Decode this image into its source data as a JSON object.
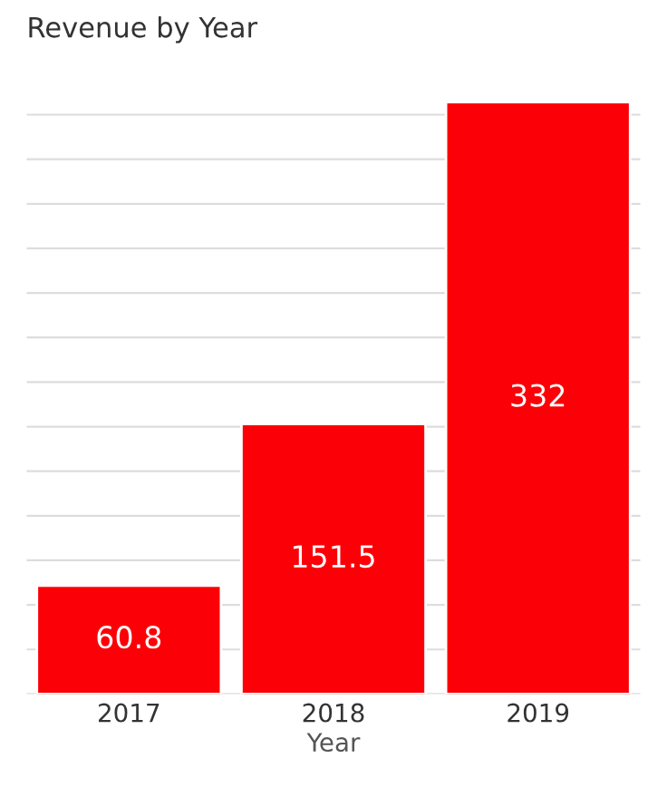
{
  "chart_data": {
    "type": "bar",
    "title": "Revenue by Year",
    "xlabel": "Year",
    "categories": [
      "2017",
      "2018",
      "2019"
    ],
    "values": [
      60.8,
      151.5,
      332
    ],
    "color": "#fc0007",
    "data_labels": true,
    "yticks": [
      {
        "value": 0,
        "label": null
      },
      {
        "value": 25,
        "label": null
      },
      {
        "value": 50,
        "label": null
      },
      {
        "value": 75,
        "label": null
      },
      {
        "value": 100,
        "label": null
      },
      {
        "value": 125,
        "label": null
      },
      {
        "value": 150,
        "label": null
      },
      {
        "value": 175,
        "label": null
      },
      {
        "value": 200,
        "label": null
      },
      {
        "value": 225,
        "label": null
      },
      {
        "value": 250,
        "label": null
      },
      {
        "value": 275,
        "label": null
      },
      {
        "value": 300,
        "label": null
      },
      {
        "value": 325,
        "label": null
      }
    ],
    "tick_labels": "x",
    "grid": "y"
  }
}
